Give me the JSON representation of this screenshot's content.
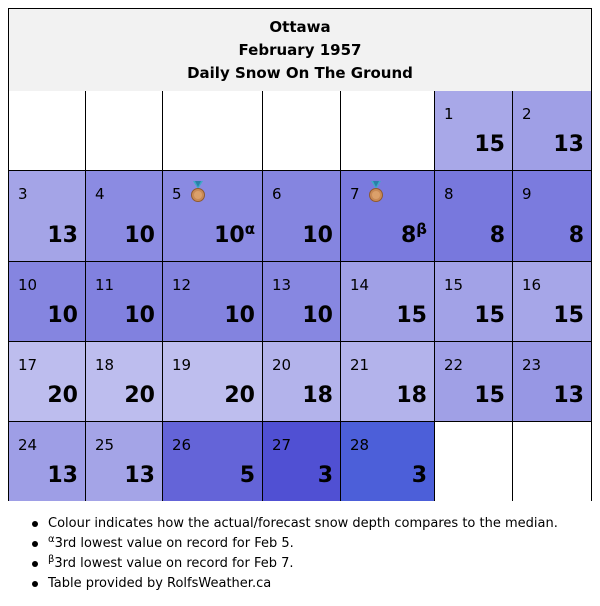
{
  "header": {
    "city": "Ottawa",
    "month": "February 1957",
    "subtitle": "Daily Snow On The Ground"
  },
  "calendar": {
    "days": [
      {
        "day": "1",
        "value": "15",
        "color": "#a8a8e8"
      },
      {
        "day": "2",
        "value": "13",
        "color": "#9f9fe6"
      },
      {
        "day": "3",
        "value": "13",
        "color": "#a4a4e7"
      },
      {
        "day": "4",
        "value": "10",
        "color": "#8b8be2"
      },
      {
        "day": "5",
        "value": "10",
        "note": "α",
        "medal": "bronze-medal-icon",
        "color": "#8a8ae2"
      },
      {
        "day": "6",
        "value": "10",
        "color": "#8585e0"
      },
      {
        "day": "7",
        "value": "8",
        "note": "β",
        "medal": "bronze-medal-icon",
        "color": "#7a7ade"
      },
      {
        "day": "8",
        "value": "8",
        "color": "#7878dd"
      },
      {
        "day": "9",
        "value": "8",
        "color": "#7b7bde"
      },
      {
        "day": "10",
        "value": "10",
        "color": "#8585e0"
      },
      {
        "day": "11",
        "value": "10",
        "color": "#8181df"
      },
      {
        "day": "12",
        "value": "10",
        "color": "#8383df"
      },
      {
        "day": "13",
        "value": "10",
        "color": "#8787e1"
      },
      {
        "day": "14",
        "value": "15",
        "color": "#a0a0e6"
      },
      {
        "day": "15",
        "value": "15",
        "color": "#a2a2e7"
      },
      {
        "day": "16",
        "value": "15",
        "color": "#a6a6e8"
      },
      {
        "day": "17",
        "value": "20",
        "color": "#bdbdee"
      },
      {
        "day": "18",
        "value": "20",
        "color": "#bdbdee"
      },
      {
        "day": "19",
        "value": "20",
        "color": "#bebeee"
      },
      {
        "day": "20",
        "value": "18",
        "color": "#b3b3eb"
      },
      {
        "day": "21",
        "value": "18",
        "color": "#b3b3eb"
      },
      {
        "day": "22",
        "value": "15",
        "color": "#a0a0e6"
      },
      {
        "day": "23",
        "value": "13",
        "color": "#9797e4"
      },
      {
        "day": "24",
        "value": "13",
        "color": "#9e9ee6"
      },
      {
        "day": "25",
        "value": "13",
        "color": "#a4a4e7"
      },
      {
        "day": "26",
        "value": "5",
        "color": "#6464d8"
      },
      {
        "day": "27",
        "value": "3",
        "color": "#5050d3"
      },
      {
        "day": "28",
        "value": "3",
        "color": "#4c5fd9"
      }
    ]
  },
  "footnotes": {
    "colour": "Colour indicates how the actual/forecast snow depth compares to the median.",
    "alpha_mark": "α",
    "alpha_text": "3rd lowest value on record for Feb 5.",
    "beta_mark": "β",
    "beta_text": "3rd lowest value on record for Feb 7.",
    "credit": "Table provided by RolfsWeather.ca"
  }
}
